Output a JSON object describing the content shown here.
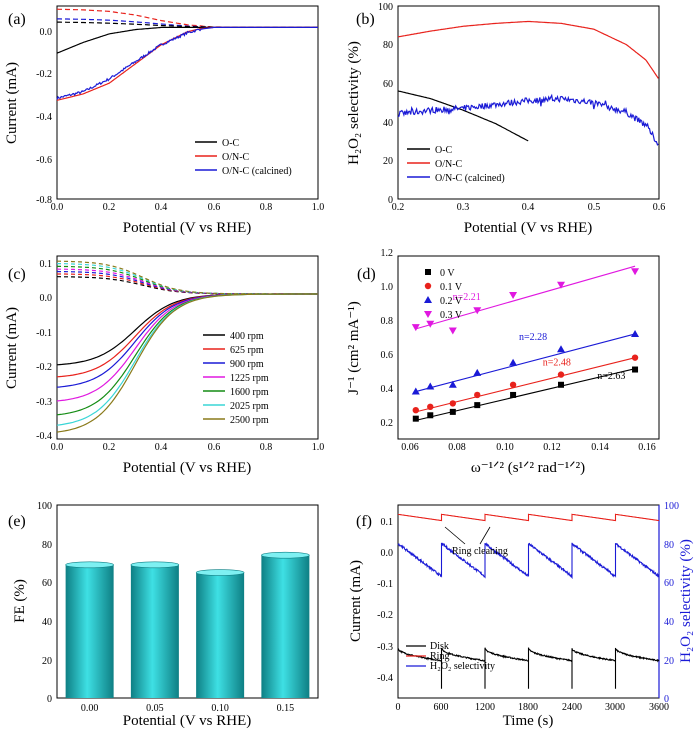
{
  "figure": {
    "panels": [
      {
        "label": "(a)"
      },
      {
        "label": "(b)"
      },
      {
        "label": "(c)"
      },
      {
        "label": "(d)"
      },
      {
        "label": "(e)"
      },
      {
        "label": "(f)"
      }
    ]
  },
  "colors": {
    "black": "#000000",
    "red": "#e8221c",
    "blue": "#1a1ad6",
    "magenta": "#ff00ff",
    "teal_bar": "#22bcc0"
  },
  "chart_data": [
    {
      "id": "a",
      "type": "line",
      "xlabel": "Potential (V vs RHE)",
      "ylabel": "Current (mA)",
      "xlim": [
        0,
        1.0
      ],
      "ylim": [
        -0.8,
        0.1
      ],
      "xticks": [
        "0.0",
        "0.2",
        "0.4",
        "0.6",
        "0.8",
        "1.0"
      ],
      "yticks": [
        "0.0",
        "-0.2",
        "-0.4",
        "-0.6",
        "-0.8"
      ],
      "legend_position": "bottom-right",
      "series": [
        {
          "name": "O-C",
          "color": "#000000",
          "x": [
            0,
            0.1,
            0.2,
            0.3,
            0.4,
            0.5,
            0.6,
            0.8,
            1.0
          ],
          "y": [
            -0.12,
            -0.07,
            -0.03,
            -0.01,
            0.0,
            0.0,
            0.0,
            0.0,
            0.0
          ]
        },
        {
          "name": "O/N-C",
          "color": "#e8221c",
          "x": [
            0,
            0.1,
            0.2,
            0.3,
            0.4,
            0.5,
            0.55,
            0.6,
            0.8,
            1.0
          ],
          "y": [
            -0.34,
            -0.31,
            -0.26,
            -0.17,
            -0.08,
            -0.02,
            -0.005,
            0.0,
            0.0,
            0.0
          ]
        },
        {
          "name": "O/N-C (calcined)",
          "color": "#1a1ad6",
          "noisy": true,
          "x": [
            0,
            0.1,
            0.2,
            0.3,
            0.4,
            0.5,
            0.55,
            0.6,
            0.8,
            1.0
          ],
          "y": [
            -0.33,
            -0.3,
            -0.24,
            -0.16,
            -0.08,
            -0.025,
            -0.008,
            0.0,
            0.0,
            0.0
          ]
        }
      ],
      "ring_series": [
        {
          "color": "#e8221c",
          "x": [
            0,
            0.1,
            0.2,
            0.3,
            0.4,
            0.5,
            0.6,
            1.0
          ],
          "y": [
            0.085,
            0.082,
            0.075,
            0.058,
            0.032,
            0.012,
            0.002,
            0.0
          ]
        },
        {
          "color": "#1a1ad6",
          "x": [
            0,
            0.1,
            0.2,
            0.3,
            0.4,
            0.5,
            0.6,
            1.0
          ],
          "y": [
            0.04,
            0.038,
            0.034,
            0.026,
            0.016,
            0.006,
            0.001,
            0.0
          ]
        },
        {
          "color": "#000000",
          "x": [
            0,
            0.1,
            0.2,
            0.3,
            0.4,
            0.5,
            0.6,
            1.0
          ],
          "y": [
            0.025,
            0.023,
            0.02,
            0.015,
            0.009,
            0.004,
            0.001,
            0.0
          ]
        }
      ]
    },
    {
      "id": "b",
      "type": "line",
      "xlabel": "Potential (V vs RHE)",
      "ylabel": "H₂O₂ selectivity (%)",
      "xlim": [
        0.2,
        0.6
      ],
      "ylim": [
        0,
        100
      ],
      "xticks": [
        "0.2",
        "0.3",
        "0.4",
        "0.5",
        "0.6"
      ],
      "yticks": [
        "0",
        "20",
        "40",
        "60",
        "80",
        "100"
      ],
      "legend_position": "bottom-left",
      "series": [
        {
          "name": "O-C",
          "color": "#000000",
          "x": [
            0.2,
            0.25,
            0.3,
            0.35,
            0.4
          ],
          "y": [
            56,
            52,
            46,
            39,
            30
          ]
        },
        {
          "name": "O/N-C",
          "color": "#e8221c",
          "x": [
            0.2,
            0.25,
            0.3,
            0.35,
            0.4,
            0.45,
            0.5,
            0.55,
            0.58,
            0.6
          ],
          "y": [
            84,
            87,
            89.5,
            91,
            92,
            91,
            88,
            80,
            72,
            62
          ]
        },
        {
          "name": "O/N-C (calcined)",
          "color": "#1a1ad6",
          "noisy": true,
          "x": [
            0.2,
            0.25,
            0.3,
            0.35,
            0.4,
            0.45,
            0.5,
            0.55,
            0.58,
            0.6
          ],
          "y": [
            44,
            46,
            47,
            49,
            51,
            52,
            50,
            45,
            38,
            28
          ]
        }
      ]
    },
    {
      "id": "c",
      "type": "line",
      "xlabel": "Potential (V vs RHE)",
      "ylabel": "Current (mA)",
      "xlim": [
        0,
        1.0
      ],
      "ylim": [
        -0.42,
        0.11
      ],
      "xticks": [
        "0.0",
        "0.2",
        "0.4",
        "0.6",
        "0.8",
        "1.0"
      ],
      "yticks": [
        "0.1",
        "0.0",
        "-0.1",
        "-0.2",
        "-0.3",
        "-0.4"
      ],
      "legend_position": "bottom-right",
      "series": [
        {
          "name": "400 rpm",
          "color": "#000000",
          "disk_at_0": -0.205,
          "ring_at_0": 0.05
        },
        {
          "name": "625 rpm",
          "color": "#e8221c",
          "disk_at_0": -0.24,
          "ring_at_0": 0.058
        },
        {
          "name": "900 rpm",
          "color": "#1a1ad6",
          "disk_at_0": -0.27,
          "ring_at_0": 0.065
        },
        {
          "name": "1225 rpm",
          "color": "#e018e0",
          "disk_at_0": -0.31,
          "ring_at_0": 0.072
        },
        {
          "name": "1600 rpm",
          "color": "#138c13",
          "disk_at_0": -0.35,
          "ring_at_0": 0.08
        },
        {
          "name": "2025 rpm",
          "color": "#3ad6d6",
          "disk_at_0": -0.38,
          "ring_at_0": 0.088
        },
        {
          "name": "2500 rpm",
          "color": "#8a7a1a",
          "disk_at_0": -0.4,
          "ring_at_0": 0.095
        }
      ]
    },
    {
      "id": "d",
      "type": "scatter",
      "xlabel": "ω⁻¹ᐟ² (s¹ᐟ² rad⁻¹ᐟ²)",
      "ylabel": "J⁻¹ (cm² mA⁻¹)",
      "xlim": [
        0.055,
        0.165
      ],
      "ylim": [
        0.2,
        1.28
      ],
      "xticks": [
        "0.06",
        "0.08",
        "0.10",
        "0.12",
        "0.14",
        "0.16"
      ],
      "yticks": [
        "0.2",
        "0.4",
        "0.6",
        "0.8",
        "1.0",
        "1.2"
      ],
      "legend_position": "top-left",
      "x": [
        0.0625,
        0.0686,
        0.0781,
        0.0884,
        0.1035,
        0.1237,
        0.1549
      ],
      "series": [
        {
          "name": "0  V",
          "color": "#000000",
          "marker": "square",
          "n_label": "n=2.63",
          "y": [
            0.32,
            0.34,
            0.36,
            0.4,
            0.46,
            0.52,
            0.61
          ],
          "fit": [
            0.31,
            0.615
          ]
        },
        {
          "name": "0.1  V",
          "color": "#e8221c",
          "marker": "circle",
          "n_label": "n=2.48",
          "y": [
            0.37,
            0.39,
            0.41,
            0.46,
            0.52,
            0.58,
            0.68
          ],
          "fit": [
            0.36,
            0.68
          ]
        },
        {
          "name": "0.2  V",
          "color": "#1a1ad6",
          "marker": "triangle-up",
          "n_label": "n=2.28",
          "y": [
            0.48,
            0.51,
            0.52,
            0.59,
            0.65,
            0.73,
            0.82
          ],
          "fit": [
            0.48,
            0.82
          ]
        },
        {
          "name": "0.3  V",
          "color": "#e018e0",
          "marker": "triangle-down",
          "n_label": "n=2.21",
          "y": [
            0.86,
            0.88,
            0.84,
            0.96,
            1.05,
            1.11,
            1.19
          ],
          "fit": [
            0.85,
            1.22
          ]
        }
      ]
    },
    {
      "id": "e",
      "type": "bar",
      "xlabel": "Potential (V vs RHE)",
      "ylabel": "FE (%)",
      "ylim": [
        0,
        100
      ],
      "yticks": [
        "0",
        "20",
        "40",
        "60",
        "80",
        "100"
      ],
      "categories": [
        "0.00",
        "0.05",
        "0.10",
        "0.15"
      ],
      "values": [
        69,
        69,
        65,
        74
      ]
    },
    {
      "id": "f",
      "type": "line",
      "xlabel": "Time (s)",
      "ylabel": "Current (mA)",
      "ylabel_right": "H₂O₂ selectivity (%)",
      "xlim": [
        0,
        3600
      ],
      "ylim": [
        -0.5,
        0.12
      ],
      "ylim_right": [
        0,
        100
      ],
      "xticks": [
        "0",
        "600",
        "1200",
        "1800",
        "2400",
        "3000",
        "3600"
      ],
      "yticks": [
        "0.1",
        "0.0",
        "-0.1",
        "-0.2",
        "-0.3",
        "-0.4"
      ],
      "yticks_right": [
        "0",
        "20",
        "40",
        "60",
        "80",
        "100"
      ],
      "legend_position": "bottom-left",
      "annotation": "Ring cleaning",
      "cleaning_times": [
        600,
        1200,
        1800,
        2400,
        3000
      ],
      "series": [
        {
          "name": "Disk",
          "color": "#000000",
          "axis": "left",
          "segment_start": -0.34,
          "segment_end": -0.38
        },
        {
          "name": "Ring",
          "color": "#e8221c",
          "axis": "left",
          "segment_start": 0.09,
          "segment_end": 0.07
        },
        {
          "name": "H₂O₂ selectivity",
          "color": "#1a1ad6",
          "axis": "right",
          "segment_start": 80,
          "segment_end": 63
        }
      ]
    }
  ]
}
